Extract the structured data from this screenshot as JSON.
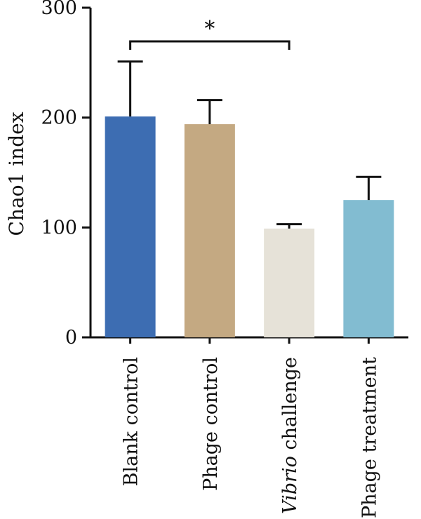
{
  "chart_data": {
    "type": "bar",
    "title": "",
    "xlabel": "",
    "ylabel": "Chao1 index",
    "ylim": [
      0,
      300
    ],
    "yticks": [
      0,
      100,
      200,
      300
    ],
    "categories": [
      {
        "parts": [
          {
            "text": "Blank control",
            "italic": false
          }
        ]
      },
      {
        "parts": [
          {
            "text": "Phage control",
            "italic": false
          }
        ]
      },
      {
        "parts": [
          {
            "text": "Vibrio",
            "italic": true
          },
          {
            "text": " challenge",
            "italic": false
          }
        ]
      },
      {
        "parts": [
          {
            "text": "Phage treatment",
            "italic": false
          }
        ]
      }
    ],
    "category_names": [
      "Blank control",
      "Phage control",
      "Vibrio challenge",
      "Phage treatment"
    ],
    "values": [
      201,
      194,
      99,
      125
    ],
    "error_upper": [
      50,
      22,
      4,
      21
    ],
    "colors": [
      "#3d6db2",
      "#c4a982",
      "#e6e2d8",
      "#82bcd1"
    ],
    "grid": false,
    "legend": "none",
    "significance": [
      {
        "from": 0,
        "to": 2,
        "label": "*"
      }
    ]
  }
}
